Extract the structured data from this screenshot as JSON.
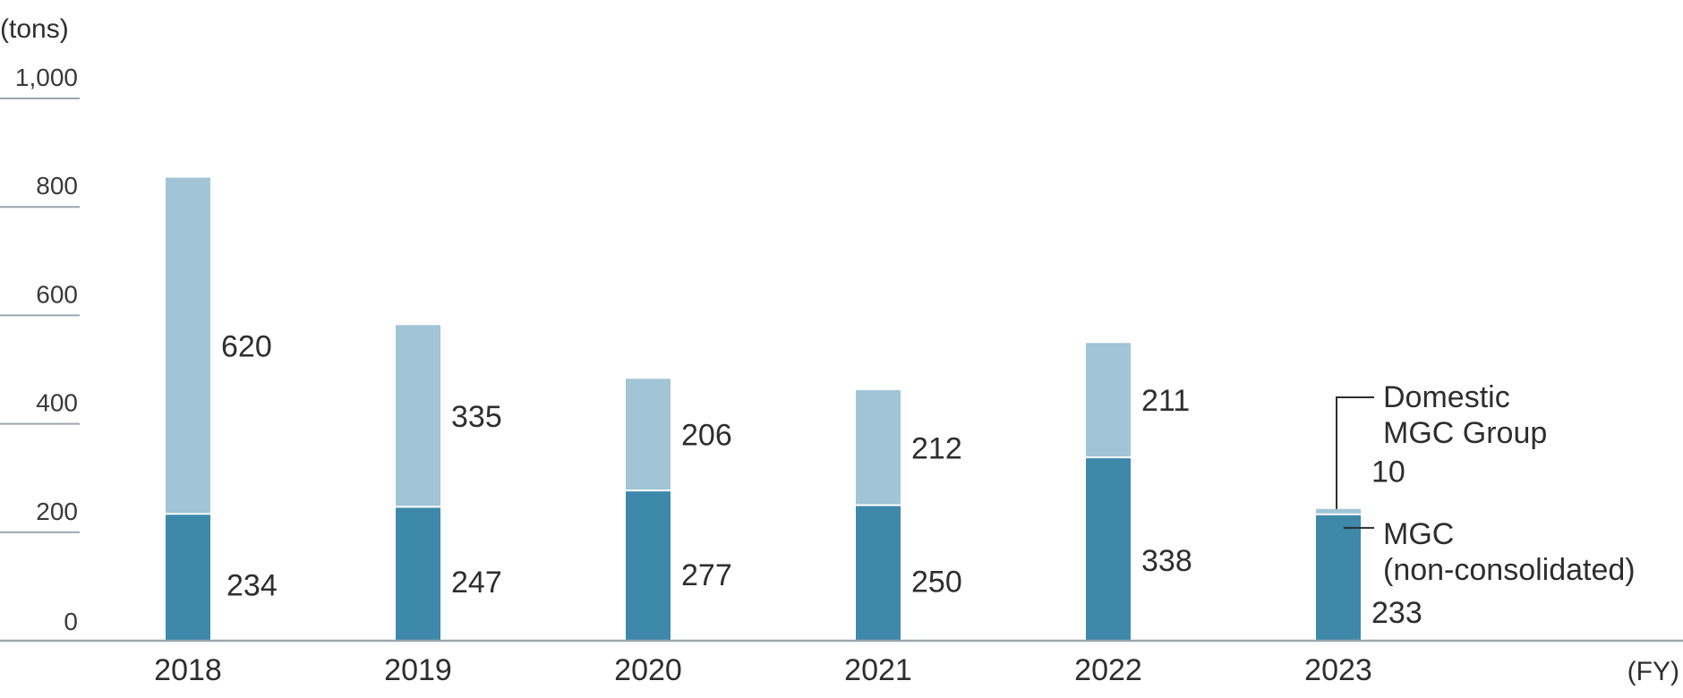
{
  "chart_data": {
    "type": "bar",
    "stacked": true,
    "title": "",
    "ylabel": "(tons)",
    "xlabel": "(FY)",
    "ylim": [
      0,
      1000
    ],
    "yticks": [
      0,
      200,
      400,
      600,
      800,
      1000
    ],
    "ytick_labels": [
      "0",
      "200",
      "400",
      "600",
      "800",
      "1,000"
    ],
    "categories": [
      "2018",
      "2019",
      "2020",
      "2021",
      "2022",
      "2023"
    ],
    "grid": false,
    "legend": "right",
    "series": [
      {
        "name": "MGC (non-consolidated)",
        "name_lines": [
          "MGC",
          "(non-consolidated)"
        ],
        "color": "#3e88aa",
        "values": [
          234,
          247,
          277,
          250,
          338,
          233
        ]
      },
      {
        "name": "Domestic MGC Group",
        "name_lines": [
          "Domestic",
          "MGC Group"
        ],
        "color": "#a1c4d6",
        "values": [
          620,
          335,
          206,
          212,
          211,
          10
        ]
      }
    ]
  },
  "colors": {
    "axis": "#9aa7b0",
    "text": "#2e2e2e",
    "separator": "#ffffff"
  }
}
